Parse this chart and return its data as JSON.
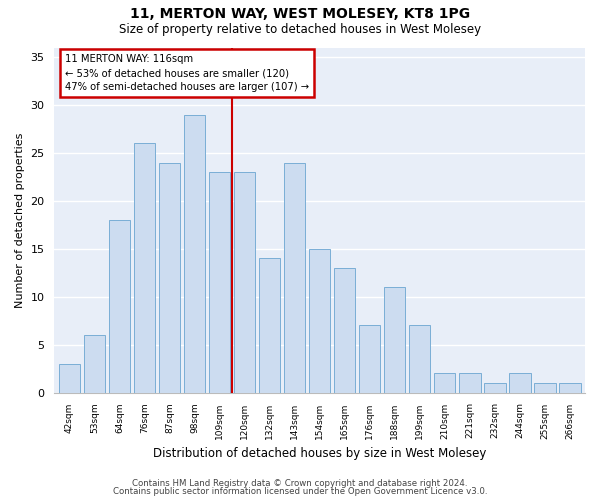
{
  "title1": "11, MERTON WAY, WEST MOLESEY, KT8 1PG",
  "title2": "Size of property relative to detached houses in West Molesey",
  "xlabel": "Distribution of detached houses by size in West Molesey",
  "ylabel": "Number of detached properties",
  "categories": [
    "42sqm",
    "53sqm",
    "64sqm",
    "76sqm",
    "87sqm",
    "98sqm",
    "109sqm",
    "120sqm",
    "132sqm",
    "143sqm",
    "154sqm",
    "165sqm",
    "176sqm",
    "188sqm",
    "199sqm",
    "210sqm",
    "221sqm",
    "232sqm",
    "244sqm",
    "255sqm",
    "266sqm"
  ],
  "values": [
    3,
    6,
    18,
    26,
    24,
    29,
    23,
    23,
    14,
    24,
    15,
    13,
    7,
    11,
    7,
    2,
    2,
    1,
    2,
    1,
    1
  ],
  "bar_color": "#ccdcf0",
  "bar_edge_color": "#7aaed6",
  "vline_color": "#cc0000",
  "annotation_text": "11 MERTON WAY: 116sqm\n← 53% of detached houses are smaller (120)\n47% of semi-detached houses are larger (107) →",
  "annotation_box_color": "#ffffff",
  "annotation_box_edge": "#cc0000",
  "ylim": [
    0,
    36
  ],
  "yticks": [
    0,
    5,
    10,
    15,
    20,
    25,
    30,
    35
  ],
  "background_color": "#e8eef8",
  "grid_color": "#ffffff",
  "footer1": "Contains HM Land Registry data © Crown copyright and database right 2024.",
  "footer2": "Contains public sector information licensed under the Open Government Licence v3.0."
}
